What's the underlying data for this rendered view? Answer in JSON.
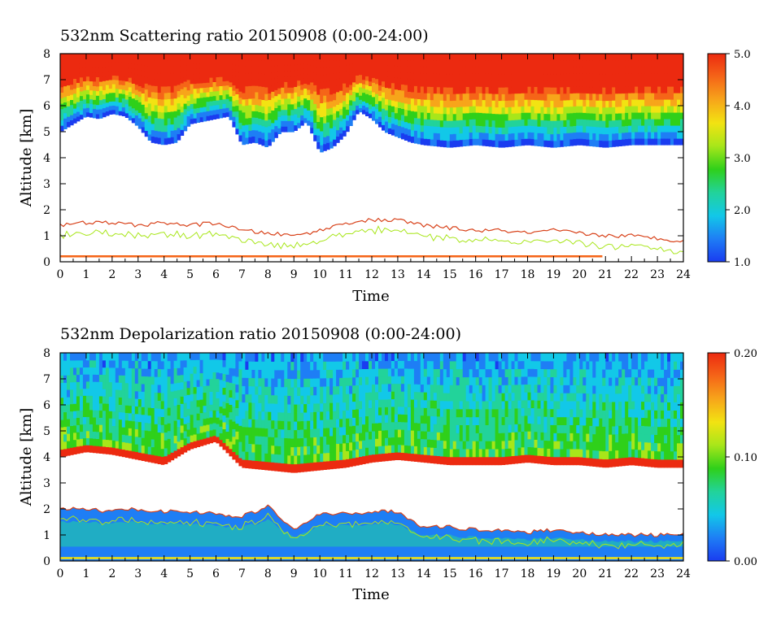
{
  "colors": {
    "colormap": [
      "#1a3cf0",
      "#1e7ef5",
      "#12c8e8",
      "#22d39a",
      "#2fd01a",
      "#a8e61a",
      "#f2e312",
      "#f7a51a",
      "#f56518",
      "#ec2a10"
    ],
    "contour": "#d8421a"
  },
  "chart_data": [
    {
      "type": "heatmap",
      "title": "532nm Scattering ratio  20150908 (0:00-24:00)",
      "xlabel": "Time",
      "ylabel": "Altitude [km]",
      "xlim": [
        0,
        24
      ],
      "ylim": [
        0,
        8
      ],
      "x_ticks": [
        "0",
        "1",
        "2",
        "3",
        "4",
        "5",
        "6",
        "7",
        "8",
        "9",
        "10",
        "11",
        "12",
        "13",
        "14",
        "15",
        "16",
        "17",
        "18",
        "19",
        "20",
        "21",
        "22",
        "23",
        "24"
      ],
      "y_ticks": [
        "0",
        "1",
        "2",
        "3",
        "4",
        "5",
        "6",
        "7",
        "8"
      ],
      "colorbar": {
        "min": 1.0,
        "max": 5.0,
        "labels": [
          "5.0",
          "4.0",
          "3.0",
          "2.0",
          "1.0"
        ]
      },
      "cloud_base_km": [
        [
          0,
          5.0
        ],
        [
          0.5,
          5.3
        ],
        [
          1,
          5.6
        ],
        [
          1.5,
          5.5
        ],
        [
          2,
          5.7
        ],
        [
          2.5,
          5.6
        ],
        [
          3,
          5.2
        ],
        [
          3.5,
          4.6
        ],
        [
          4,
          4.5
        ],
        [
          4.5,
          4.6
        ],
        [
          5,
          5.3
        ],
        [
          5.5,
          5.4
        ],
        [
          6,
          5.5
        ],
        [
          6.5,
          5.6
        ],
        [
          7,
          4.5
        ],
        [
          7.5,
          4.6
        ],
        [
          8,
          4.4
        ],
        [
          8.5,
          5.0
        ],
        [
          9,
          5.0
        ],
        [
          9.5,
          5.4
        ],
        [
          10,
          4.2
        ],
        [
          10.5,
          4.4
        ],
        [
          11,
          4.9
        ],
        [
          11.5,
          5.8
        ],
        [
          12,
          5.5
        ],
        [
          12.5,
          5.0
        ],
        [
          13,
          4.8
        ],
        [
          13.5,
          4.6
        ],
        [
          14,
          4.5
        ],
        [
          15,
          4.4
        ],
        [
          16,
          4.5
        ],
        [
          17,
          4.4
        ],
        [
          18,
          4.5
        ],
        [
          19,
          4.4
        ],
        [
          20,
          4.5
        ],
        [
          21,
          4.4
        ],
        [
          22,
          4.5
        ],
        [
          23,
          4.5
        ],
        [
          24,
          4.5
        ]
      ],
      "low_layer_km": [
        [
          0,
          1.4
        ],
        [
          1,
          1.5
        ],
        [
          2,
          1.5
        ],
        [
          3,
          1.4
        ],
        [
          4,
          1.5
        ],
        [
          5,
          1.4
        ],
        [
          6,
          1.5
        ],
        [
          7,
          1.2
        ],
        [
          8,
          1.1
        ],
        [
          9,
          1.0
        ],
        [
          10,
          1.2
        ],
        [
          11,
          1.5
        ],
        [
          12,
          1.6
        ],
        [
          13,
          1.6
        ],
        [
          14,
          1.4
        ],
        [
          15,
          1.3
        ],
        [
          16,
          1.2
        ],
        [
          17,
          1.2
        ],
        [
          18,
          1.1
        ],
        [
          19,
          1.2
        ],
        [
          20,
          1.1
        ],
        [
          21,
          1.0
        ],
        [
          22,
          1.0
        ],
        [
          23,
          0.9
        ],
        [
          24,
          0.8
        ]
      ],
      "surface_layer_km": 0.2
    },
    {
      "type": "heatmap",
      "title": "532nm Depolarization ratio  20150908 (0:00-24:00)",
      "xlabel": "Time",
      "ylabel": "Altitude [km]",
      "xlim": [
        0,
        24
      ],
      "ylim": [
        0,
        8
      ],
      "x_ticks": [
        "0",
        "1",
        "2",
        "3",
        "4",
        "5",
        "6",
        "7",
        "8",
        "9",
        "10",
        "11",
        "12",
        "13",
        "14",
        "15",
        "16",
        "17",
        "18",
        "19",
        "20",
        "21",
        "22",
        "23",
        "24"
      ],
      "y_ticks": [
        "0",
        "1",
        "2",
        "3",
        "4",
        "5",
        "6",
        "7",
        "8"
      ],
      "colorbar": {
        "min": 0.0,
        "max": 0.2,
        "labels": [
          "0.20",
          "0.10",
          "0.00"
        ]
      },
      "cloud_base_km": [
        [
          0,
          4.0
        ],
        [
          1,
          4.2
        ],
        [
          2,
          4.1
        ],
        [
          3,
          3.9
        ],
        [
          4,
          3.7
        ],
        [
          5,
          4.3
        ],
        [
          6,
          4.6
        ],
        [
          7,
          3.6
        ],
        [
          8,
          3.5
        ],
        [
          9,
          3.4
        ],
        [
          10,
          3.5
        ],
        [
          11,
          3.6
        ],
        [
          12,
          3.8
        ],
        [
          13,
          3.9
        ],
        [
          14,
          3.8
        ],
        [
          15,
          3.7
        ],
        [
          16,
          3.7
        ],
        [
          17,
          3.7
        ],
        [
          18,
          3.8
        ],
        [
          19,
          3.7
        ],
        [
          20,
          3.7
        ],
        [
          21,
          3.6
        ],
        [
          22,
          3.7
        ],
        [
          23,
          3.6
        ],
        [
          24,
          3.6
        ]
      ],
      "low_layer_km": [
        [
          0,
          2.0
        ],
        [
          1,
          2.0
        ],
        [
          2,
          1.9
        ],
        [
          3,
          2.0
        ],
        [
          4,
          1.9
        ],
        [
          5,
          1.9
        ],
        [
          6,
          1.8
        ],
        [
          7,
          1.7
        ],
        [
          8,
          2.1
        ],
        [
          9,
          1.2
        ],
        [
          10,
          1.8
        ],
        [
          11,
          1.8
        ],
        [
          12,
          1.9
        ],
        [
          13,
          1.9
        ],
        [
          14,
          1.3
        ],
        [
          15,
          1.3
        ],
        [
          16,
          1.2
        ],
        [
          17,
          1.2
        ],
        [
          18,
          1.1
        ],
        [
          19,
          1.2
        ],
        [
          20,
          1.1
        ],
        [
          21,
          1.0
        ],
        [
          22,
          1.0
        ],
        [
          23,
          1.0
        ],
        [
          24,
          1.0
        ]
      ],
      "surface_layer_km": 0.1
    }
  ]
}
